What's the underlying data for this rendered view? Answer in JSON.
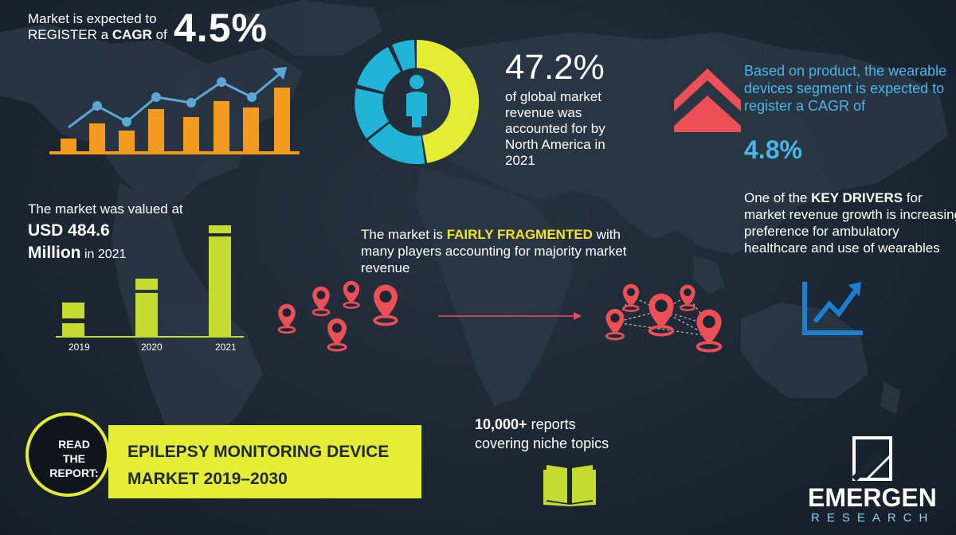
{
  "cagr": {
    "line1": "Market is expected to",
    "line2_prefix": "REGISTER a ",
    "line2_bold": "CAGR",
    "line2_suffix": " of",
    "value": "4.5%"
  },
  "north_america": {
    "percent": "47.2%",
    "description": "of global market revenue was accounted for by North America in 2021",
    "share": 0.472
  },
  "product": {
    "description": "Based on product,  the wearable devices segment is expected to register a CAGR of",
    "cagr": "4.8%"
  },
  "drivers": {
    "prefix": "One of the ",
    "bold": "KEY DRIVERS",
    "suffix": " for market revenue growth is increasing preference for ambulatory healthcare and use of wearables"
  },
  "valuation": {
    "label": "The market was valued at",
    "amount_line1": "USD 484.6",
    "amount_line2": "Million",
    "year_suffix": " in 2021",
    "years": [
      "2019",
      "2020",
      "2021"
    ]
  },
  "fragmentation": {
    "prefix": "The market is ",
    "highlight": "FAIRLY FRAGMENTED",
    "suffix": " with many players accounting for majority market revenue"
  },
  "reports": {
    "bold": "10,000+",
    "line1_suffix": " reports",
    "line2": "covering niche topics"
  },
  "read_report": {
    "lines": [
      "READ",
      "THE",
      "REPORT:"
    ],
    "title_line1": "EPILEPSY MONITORING DEVICE",
    "title_line2": "MARKET 2019–2030"
  },
  "logo": {
    "name": "EMERGEN",
    "sub": "RESEARCH"
  },
  "colors": {
    "orange": "#f39b1e",
    "lightblue": "#48b6e6",
    "yellow": "#f4e22a",
    "lime": "#c6db2f",
    "cyan": "#22b4d8",
    "red": "#ec4f55",
    "blue": "#1d7fd0"
  },
  "icons": [
    "bar-chart-icon",
    "donut-chart-icon",
    "person-icon",
    "double-chevron-up-icon",
    "trend-up-icon",
    "location-pin-icon",
    "open-book-icon",
    "emergen-logo-icon"
  ]
}
